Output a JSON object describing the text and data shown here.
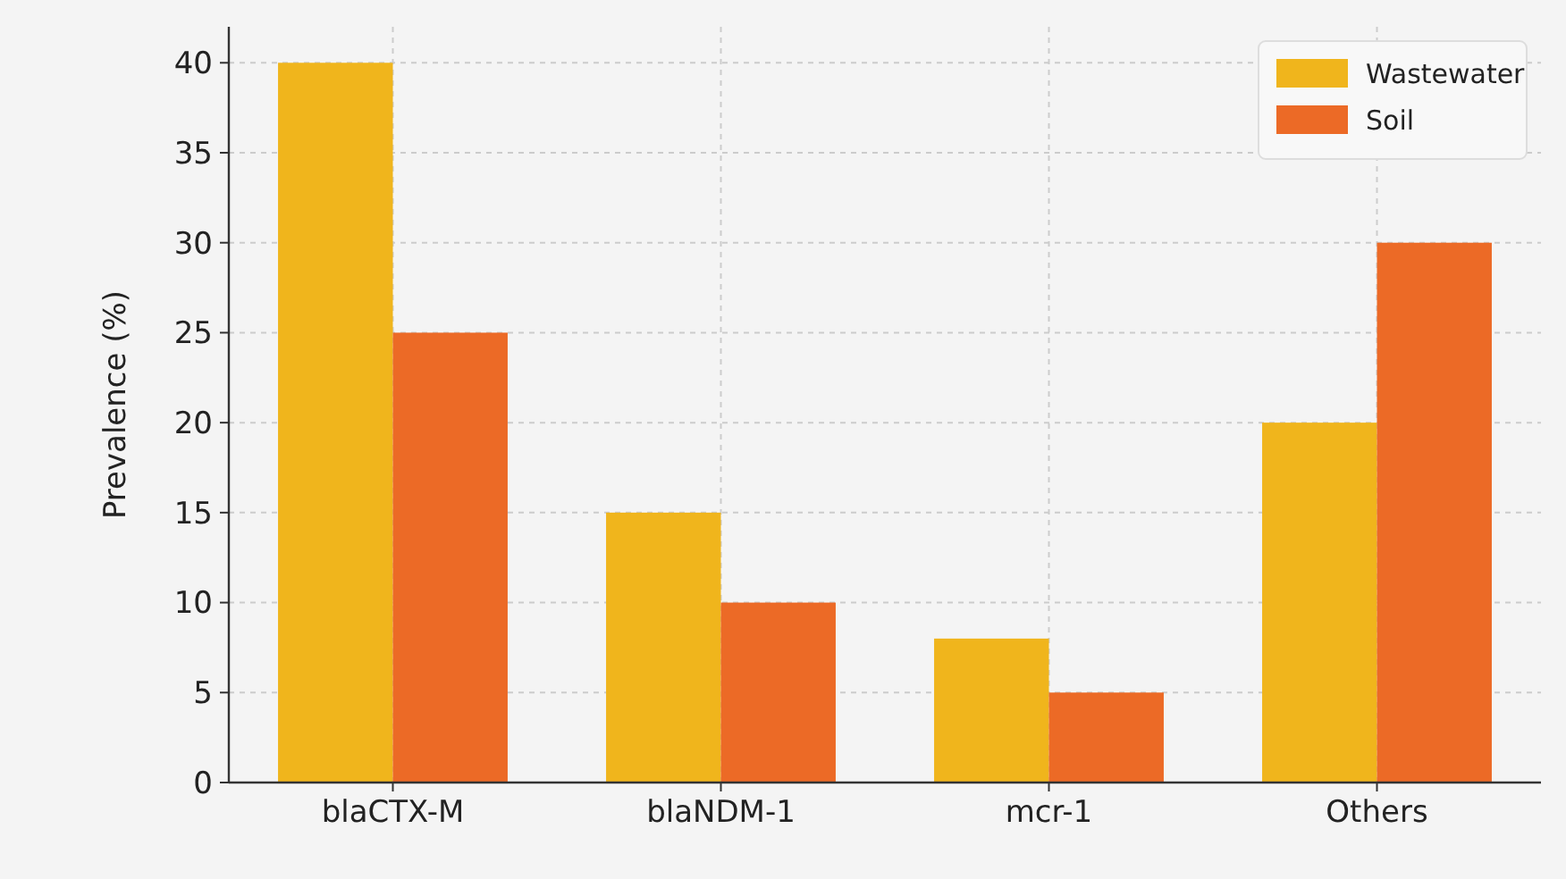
{
  "chart_data": {
    "type": "bar",
    "ylabel": "Prevalence (%)",
    "categories": [
      "blaCTX-M",
      "blaNDM-1",
      "mcr-1",
      "Others"
    ],
    "series": [
      {
        "name": "Wastewater",
        "color": "#f0b51c",
        "values": [
          40,
          15,
          8,
          20
        ]
      },
      {
        "name": "Soil",
        "color": "#ec6a26",
        "values": [
          25,
          10,
          5,
          30
        ]
      }
    ],
    "ylim": [
      0,
      42
    ],
    "yticks": [
      0,
      5,
      10,
      15,
      20,
      25,
      30,
      35,
      40
    ],
    "grid": true,
    "legend": "top right"
  }
}
